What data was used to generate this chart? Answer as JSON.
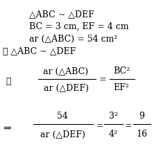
{
  "background_color": "#ffffff",
  "figsize": [
    2.19,
    2.26
  ],
  "dpi": 100,
  "fontsize": 9.0,
  "line1": "△ABC ~ △DEF",
  "line2": "BC = 3 cm, EF = 4 cm",
  "line3": "ar (△ABC) = 54 cm²",
  "line4": "∴ △ABC ~ △DEF",
  "therefore": "∴",
  "implies": "⇒",
  "frac1_num": "ar (△ABC)",
  "frac1_den": "ar (△DEF)",
  "frac2_num": "BC²",
  "frac2_den": "EF²",
  "frac3_num": "54",
  "frac3_den": "ar (△DEF)",
  "frac4_num": "3²",
  "frac4_den": "4²",
  "frac5_num": "9",
  "frac5_den": "16"
}
